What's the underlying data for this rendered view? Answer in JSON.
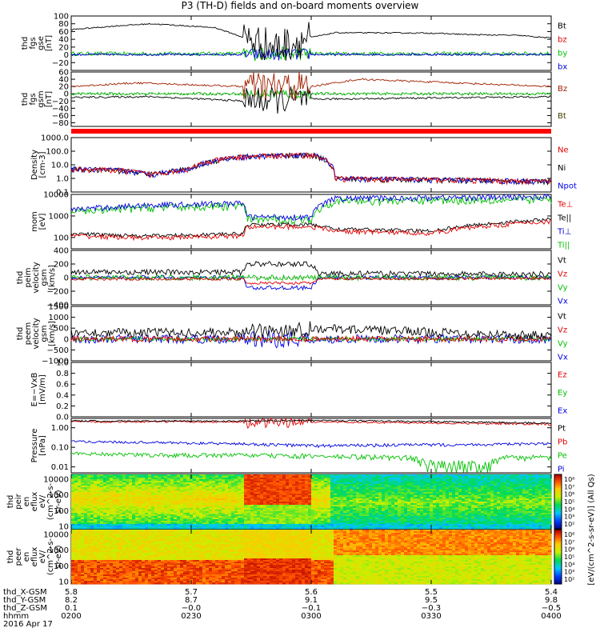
{
  "title": "P3 (TH-D) fields and on-board moments overview",
  "panels": [
    {
      "id": "fgs_gse",
      "ylabel": [
        "thd",
        "fgs",
        "gse",
        "[nT]"
      ],
      "yticks": [
        "100",
        "80",
        "60",
        "40",
        "20",
        "0",
        "−20"
      ],
      "ymin": -40,
      "ymax": 100,
      "scale": "linear",
      "legend": [
        {
          "text": "Bt",
          "color": "#000000"
        },
        {
          "text": "bz",
          "color": "#e00000"
        },
        {
          "text": "by",
          "color": "#00c000"
        },
        {
          "text": "bx",
          "color": "#0000e0"
        }
      ]
    },
    {
      "id": "fgs_gsm",
      "ylabel": [
        "thd",
        "fgs",
        "gsm",
        "[nT]"
      ],
      "yticks": [
        "60",
        "40",
        "20",
        "0",
        "−20",
        "−40",
        "−60",
        "−80"
      ],
      "ymin": -90,
      "ymax": 60,
      "scale": "linear",
      "legend": [
        {
          "text": "Bz",
          "color": "#a02000"
        },
        {
          "text": "Bt",
          "color": "#404000"
        }
      ]
    },
    {
      "id": "density",
      "ylabel": [
        "Density",
        "[cm-3]"
      ],
      "yticks": [
        "1000.0",
        "100.0",
        "10.0",
        "1.0",
        "0.1"
      ],
      "ymin": 0.1,
      "ymax": 1000,
      "scale": "log",
      "legend": [
        {
          "text": "Ne",
          "color": "#e00000"
        },
        {
          "text": "Ni",
          "color": "#000000"
        },
        {
          "text": "Npot",
          "color": "#0000e0"
        }
      ]
    },
    {
      "id": "temp",
      "ylabel": [
        "mom",
        "[eV]"
      ],
      "yticks": [
        "10000",
        "1000",
        "100"
      ],
      "ymin": 30,
      "ymax": 10000,
      "scale": "log",
      "legend": [
        {
          "text": "Te⊥",
          "color": "#e00000"
        },
        {
          "text": "Te||",
          "color": "#000000"
        },
        {
          "text": "Ti⊥",
          "color": "#0000e0"
        },
        {
          "text": "Ti||",
          "color": "#00c000"
        }
      ]
    },
    {
      "id": "peim_vel",
      "ylabel": [
        "thd",
        "peim",
        "velocity",
        "gsm",
        "[km/s]"
      ],
      "yticks": [
        "400",
        "200",
        "0",
        "−200",
        "−400"
      ],
      "ymin": -400,
      "ymax": 400,
      "scale": "linear",
      "legend": [
        {
          "text": "Vt",
          "color": "#000000"
        },
        {
          "text": "Vz",
          "color": "#e00000"
        },
        {
          "text": "Vy",
          "color": "#00c000"
        },
        {
          "text": "Vx",
          "color": "#0000e0"
        }
      ]
    },
    {
      "id": "peem_vel",
      "ylabel": [
        "thd",
        "peem",
        "velocity",
        "gsm",
        "[km/s]"
      ],
      "yticks": [
        "1500",
        "1000",
        "500",
        "0",
        "−500",
        "−1000"
      ],
      "ymin": -1000,
      "ymax": 1500,
      "scale": "linear",
      "legend": [
        {
          "text": "Vt",
          "color": "#000000"
        },
        {
          "text": "Vz",
          "color": "#e00000"
        },
        {
          "text": "Vy",
          "color": "#00c000"
        },
        {
          "text": "Vx",
          "color": "#0000e0"
        }
      ]
    },
    {
      "id": "efield",
      "ylabel": [
        "E=−VxB",
        "[mV/m]"
      ],
      "yticks": [
        "1.0",
        "0.8",
        "0.6",
        "0.4",
        "0.2",
        "0.0"
      ],
      "ymin": 0,
      "ymax": 1,
      "scale": "linear",
      "legend": [
        {
          "text": "Ez",
          "color": "#e00000"
        },
        {
          "text": "Ey",
          "color": "#00c000"
        },
        {
          "text": "Ex",
          "color": "#0000e0"
        }
      ]
    },
    {
      "id": "pressure",
      "ylabel": [
        "Pressure",
        "[nPa]"
      ],
      "yticks": [
        "1.00",
        "0.10",
        "0.01"
      ],
      "ymin": 0.005,
      "ymax": 3,
      "scale": "log",
      "legend": [
        {
          "text": "Pt",
          "color": "#000000"
        },
        {
          "text": "Pb",
          "color": "#e00000"
        },
        {
          "text": "Pe",
          "color": "#00c000"
        },
        {
          "text": "Pi",
          "color": "#0000e0"
        }
      ]
    },
    {
      "id": "peir",
      "ylabel": [
        "thd",
        "peir",
        "en",
        "eflux",
        "eV/",
        "(cm^2-s-",
        "sr-eV)"
      ],
      "yticks": [
        "10000",
        "1000",
        "100",
        "10"
      ],
      "scale": "log",
      "spectrogram": true,
      "colorbar_ticks": [
        "10⁸",
        "10⁷",
        "10⁶",
        "10⁵",
        "10⁴",
        "10³",
        "10²"
      ]
    },
    {
      "id": "peer",
      "ylabel": [
        "thd",
        "peer",
        "en",
        "eflux",
        "eV/",
        "(cm^2-s-",
        "sr-eV)"
      ],
      "yticks": [
        "10000",
        "1000",
        "100",
        "10"
      ],
      "scale": "log",
      "spectrogram": true,
      "colorbar_ticks": [
        "10⁸",
        "10⁷",
        "10⁶",
        "10⁵",
        "10⁴",
        "10³",
        "10²"
      ]
    }
  ],
  "colorbar_label": "[eV/(cm^2-s-sr-eV)] (All Qs)",
  "xaxis": {
    "row_labels": [
      "thd_X-GSM",
      "thd_Y-GSM",
      "thd_Z-GSM",
      "hhmm"
    ],
    "date": "2016 Apr 17",
    "ticks": [
      {
        "x_gsm": "5.8",
        "y_gsm": "8.2",
        "z_gsm": "0.1",
        "time": "0200"
      },
      {
        "x_gsm": "5.7",
        "y_gsm": "8.7",
        "z_gsm": "−0.0",
        "time": "0230"
      },
      {
        "x_gsm": "5.6",
        "y_gsm": "9.1",
        "z_gsm": "−0.1",
        "time": "0300"
      },
      {
        "x_gsm": "5.5",
        "y_gsm": "9.5",
        "z_gsm": "−0.3",
        "time": "0330"
      },
      {
        "x_gsm": "5.4",
        "y_gsm": "9.8",
        "z_gsm": "−0.5",
        "time": "0400"
      }
    ]
  },
  "chart_data": {
    "type": "line",
    "title": "P3 (TH-D) fields and on-board moments overview",
    "x": {
      "type": "time",
      "range": [
        "2016-04-17 02:00",
        "2016-04-17 04:00"
      ],
      "ticks": [
        "0200",
        "0230",
        "0300",
        "0330",
        "0400"
      ]
    },
    "series_note_free": true,
    "series": [
      {
        "panel": "fgs_gse",
        "name": "Bt",
        "approx_x": [
          "02:00",
          "02:10",
          "02:20",
          "02:34",
          "02:50",
          "03:10",
          "03:30",
          "03:50",
          "04:00"
        ],
        "approx_y": [
          65,
          75,
          70,
          25,
          55,
          57,
          52,
          48,
          45
        ]
      },
      {
        "panel": "fgs_gse",
        "name": "bz",
        "approx_x": [
          "02:00",
          "02:30",
          "03:00",
          "03:30",
          "04:00"
        ],
        "approx_y": [
          5,
          5,
          3,
          5,
          8
        ]
      },
      {
        "panel": "fgs_gse",
        "name": "by",
        "approx_x": [
          "02:00",
          "02:30",
          "03:00",
          "03:30",
          "04:00"
        ],
        "approx_y": [
          0,
          -5,
          0,
          -3,
          0
        ]
      },
      {
        "panel": "fgs_gse",
        "name": "bx",
        "approx_x": [
          "02:00",
          "02:30",
          "03:00",
          "03:30",
          "04:00"
        ],
        "approx_y": [
          2,
          -8,
          2,
          0,
          2
        ]
      },
      {
        "panel": "density",
        "name": "Ne",
        "approx_x": [
          "02:00",
          "02:20",
          "02:34",
          "02:50",
          "03:10",
          "03:30",
          "04:00"
        ],
        "approx_y": [
          5,
          2,
          50,
          60,
          0.5,
          0.5,
          0.6
        ]
      },
      {
        "panel": "density",
        "name": "Ni",
        "approx_x": [
          "02:00",
          "02:20",
          "02:34",
          "02:50",
          "03:10",
          "03:30",
          "04:00"
        ],
        "approx_y": [
          6,
          2,
          60,
          70,
          0.5,
          0.6,
          0.7
        ]
      },
      {
        "panel": "density",
        "name": "Npot",
        "approx_x": [
          "02:00",
          "02:20",
          "02:34",
          "02:50",
          "03:10",
          "03:30",
          "04:00"
        ],
        "approx_y": [
          5,
          2,
          50,
          60,
          0.7,
          0.8,
          0.9
        ]
      },
      {
        "panel": "pressure",
        "name": "Pt",
        "approx_x": [
          "02:00",
          "02:30",
          "03:00",
          "03:30",
          "04:00"
        ],
        "approx_y": [
          2,
          2,
          2,
          2,
          1.5
        ]
      },
      {
        "panel": "pressure",
        "name": "Pi",
        "approx_x": [
          "02:00",
          "02:30",
          "03:00",
          "03:30",
          "04:00"
        ],
        "approx_y": [
          0.2,
          0.15,
          0.1,
          0.12,
          0.15
        ]
      },
      {
        "panel": "pressure",
        "name": "Pe",
        "approx_x": [
          "02:00",
          "02:30",
          "03:00",
          "03:30",
          "04:00"
        ],
        "approx_y": [
          0.05,
          0.04,
          0.03,
          0.015,
          0.03
        ]
      }
    ]
  }
}
